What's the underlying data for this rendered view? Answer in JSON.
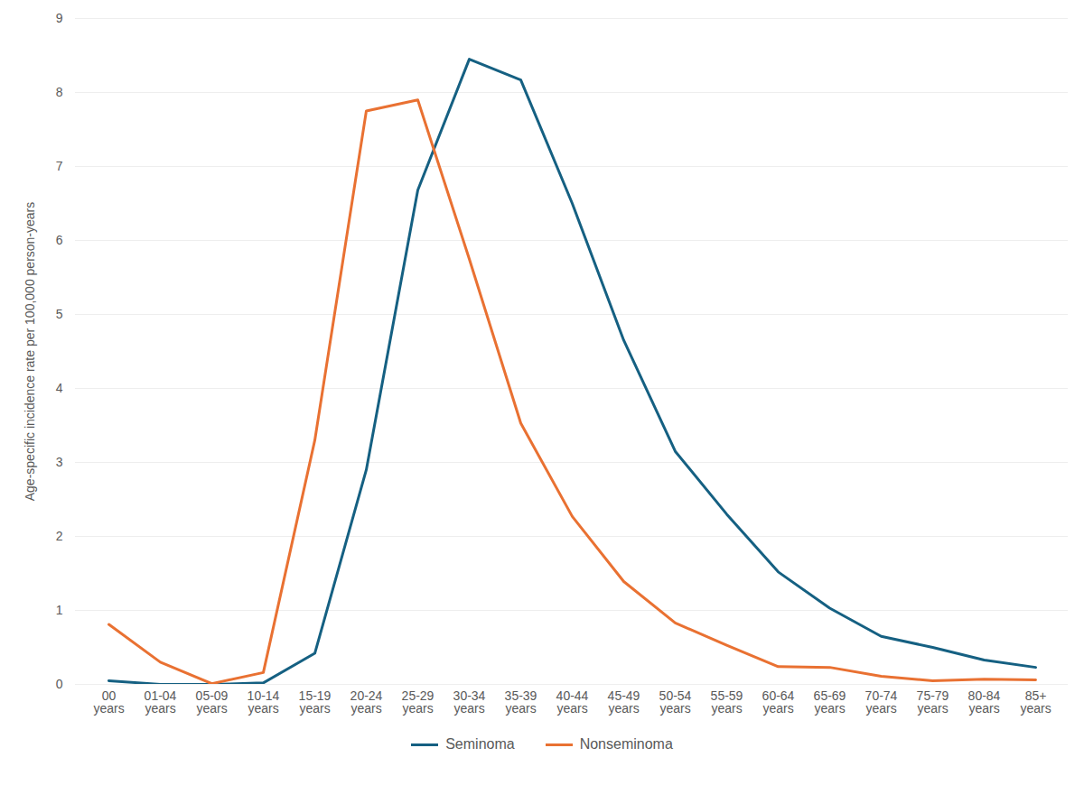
{
  "chart_data": {
    "type": "line",
    "y_label": "Age-specific incidence rate per 100,000 person-years",
    "categories": [
      "00 years",
      "01-04 years",
      "05-09 years",
      "10-14 years",
      "15-19 years",
      "20-24 years",
      "25-29 years",
      "30-34 years",
      "35-39 years",
      "40-44 years",
      "45-49 years",
      "50-54 years",
      "55-59 years",
      "60-64 years",
      "65-69 years",
      "70-74 years",
      "75-79 years",
      "80-84 years",
      "85+ years"
    ],
    "series": [
      {
        "name": "Seminoma",
        "color": "#156082",
        "values": [
          0.05,
          0.0,
          0.0,
          0.02,
          0.42,
          2.9,
          6.68,
          8.45,
          8.17,
          6.5,
          4.65,
          3.15,
          2.3,
          1.52,
          1.03,
          0.65,
          0.5,
          0.33,
          0.23
        ]
      },
      {
        "name": "Nonseminoma",
        "color": "#e97132",
        "values": [
          0.81,
          0.3,
          0.01,
          0.16,
          3.3,
          7.75,
          7.9,
          5.75,
          3.53,
          2.27,
          1.39,
          0.83,
          0.53,
          0.24,
          0.23,
          0.11,
          0.05,
          0.07,
          0.06
        ]
      }
    ],
    "ylim": [
      0,
      9
    ],
    "yticks": [
      0,
      1,
      2,
      3,
      4,
      5,
      6,
      7,
      8,
      9
    ],
    "grid": true,
    "legend": "bottom"
  }
}
